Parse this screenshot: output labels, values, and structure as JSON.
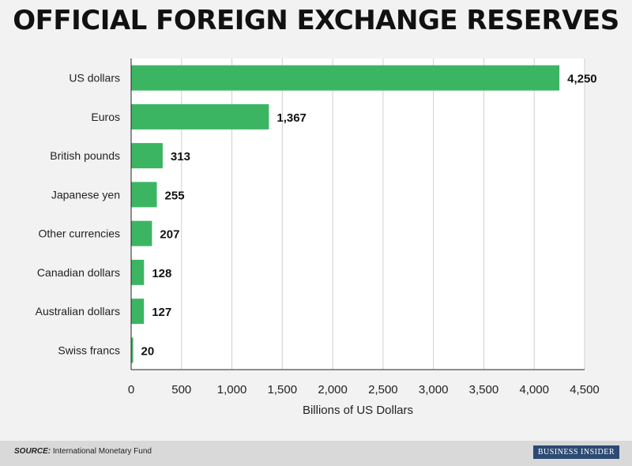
{
  "chart_data": {
    "type": "bar",
    "orientation": "horizontal",
    "title": "OFFICIAL FOREIGN EXCHANGE RESERVES",
    "categories": [
      "US dollars",
      "Euros",
      "British pounds",
      "Japanese yen",
      "Other currencies",
      "Canadian dollars",
      "Australian dollars",
      "Swiss francs"
    ],
    "values": [
      4250,
      1367,
      313,
      255,
      207,
      128,
      127,
      20
    ],
    "value_labels": [
      "4,250",
      "1,367",
      "313",
      "255",
      "207",
      "128",
      "127",
      "20"
    ],
    "xlabel": "Billions of US Dollars",
    "ylabel": "",
    "xlim": [
      0,
      4500
    ],
    "xticks": [
      0,
      500,
      1000,
      1500,
      2000,
      2500,
      3000,
      3500,
      4000,
      4500
    ],
    "xtick_labels": [
      "0",
      "500",
      "1,000",
      "1,500",
      "2,000",
      "2,500",
      "3,000",
      "3,500",
      "4,000",
      "4,500"
    ],
    "grid": "vertical",
    "bar_color": "#3cb563"
  },
  "footer": {
    "source_label": "SOURCE:",
    "source_text": "International Monetary Fund",
    "brand": "BUSINESS INSIDER"
  }
}
